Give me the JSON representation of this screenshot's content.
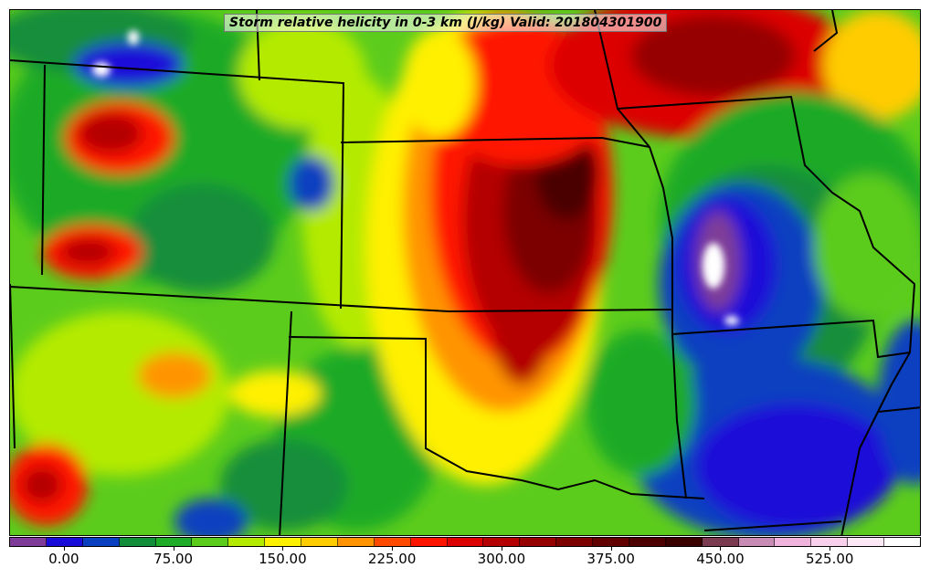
{
  "title": "Storm relative helicity in 0-3 km (J/kg) Valid: 201804301900",
  "colorbar": {
    "colors": [
      "#7e3c98",
      "#1a0cd8",
      "#0a3fc0",
      "#128e3a",
      "#1faa27",
      "#5ccc1c",
      "#b4ea00",
      "#fff000",
      "#ffcc00",
      "#ff9400",
      "#ff4a00",
      "#ff1400",
      "#dc0000",
      "#b40000",
      "#960000",
      "#7c0000",
      "#620000",
      "#4c0000",
      "#3a0000",
      "#7a3a50",
      "#c88cb4",
      "#f0b4dc",
      "#f8d0ec",
      "#fde8f6",
      "#ffffff"
    ],
    "tick_labels": [
      "0.00",
      "75.00",
      "150.00",
      "225.00",
      "300.00",
      "375.00",
      "450.00",
      "525.00"
    ],
    "tick_values": [
      0,
      75,
      150,
      225,
      300,
      375,
      450,
      525
    ]
  },
  "map": {
    "field": "Storm relative helicity 0-3 km",
    "units": "J/kg",
    "region": "Central United States"
  }
}
